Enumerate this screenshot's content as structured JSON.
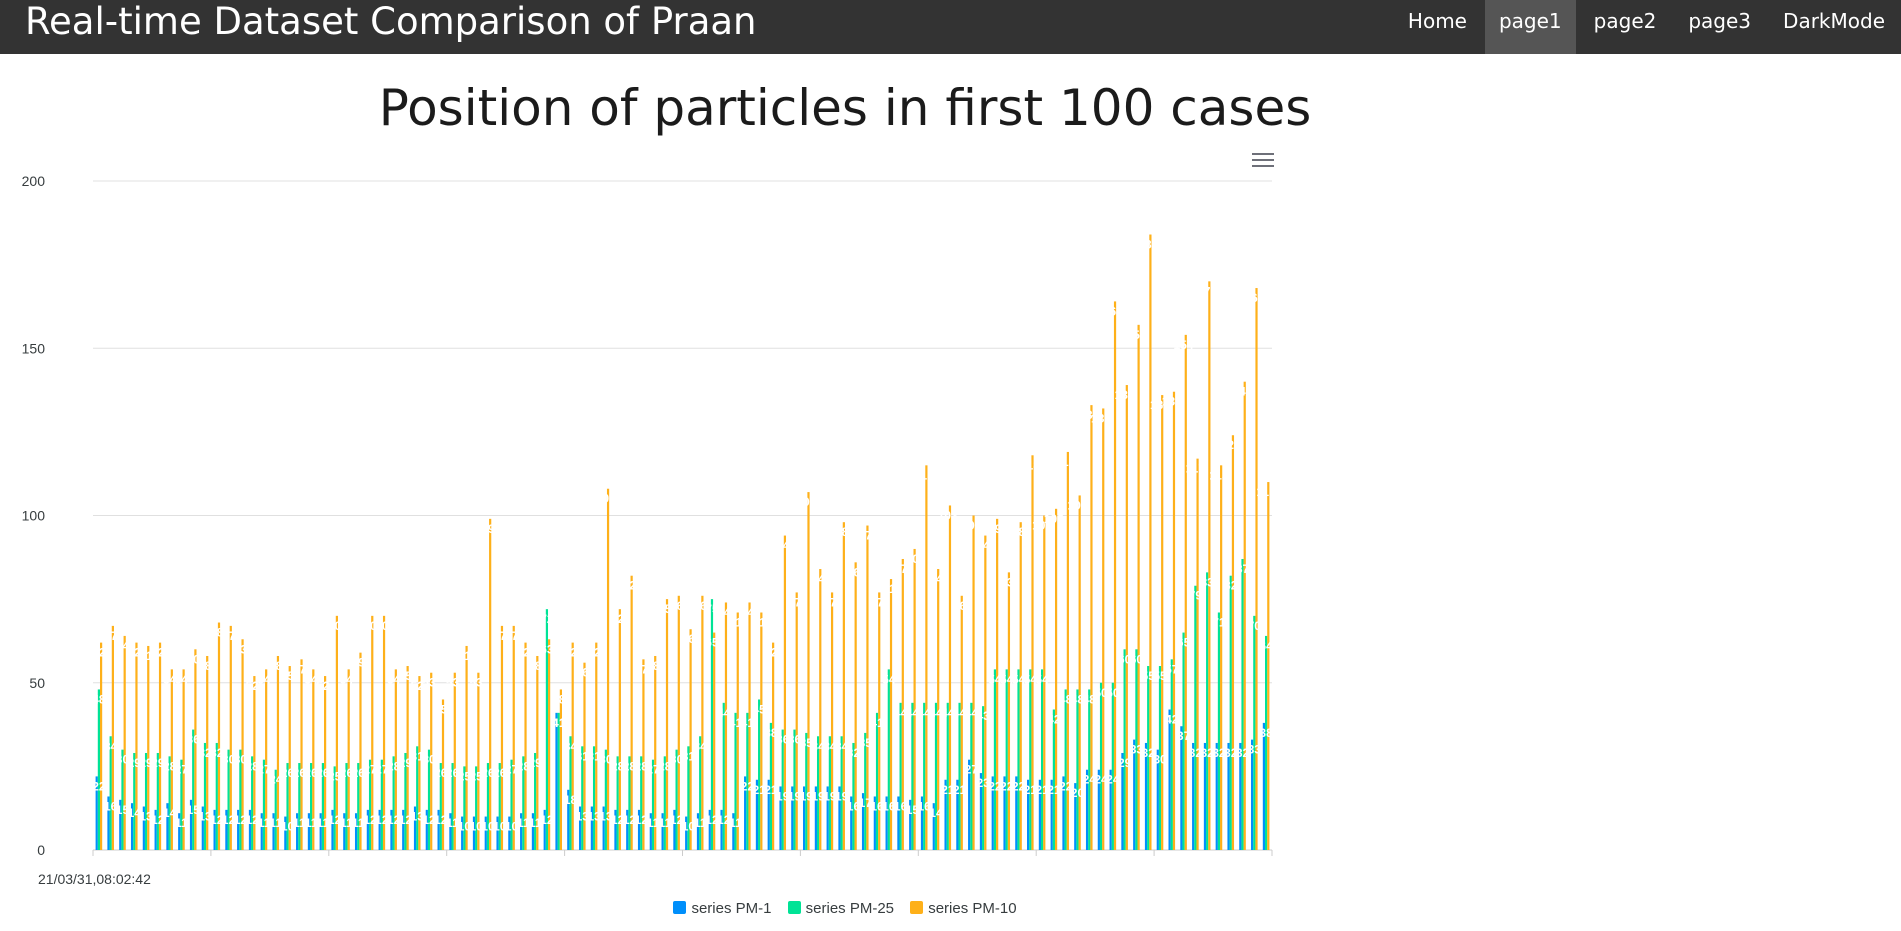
{
  "navbar": {
    "title": "Real-time Dataset Comparison of Praan",
    "items": [
      "Home",
      "page1",
      "page2",
      "page3",
      "DarkMode"
    ],
    "active_index": 1
  },
  "colors": {
    "navbar_bg": "#333333",
    "active_item_bg": "#555555",
    "grid": "#e0e0e0",
    "axis_text": "#373d3f"
  },
  "icons": {
    "chart_menu": "hamburger-menu-icon"
  },
  "chart_data": {
    "type": "bar",
    "title": "Position of particles in first 100 cases",
    "xlabel": "",
    "ylabel": "",
    "ylim": [
      0,
      200
    ],
    "yticks": [
      "0",
      "50",
      "100",
      "150",
      "200"
    ],
    "x_first_label": "21/03/31,08:02:42",
    "grid": true,
    "legend_position": "bottom-center",
    "data_labels": true,
    "series": [
      {
        "name": "series PM-1",
        "color": "#008ffb",
        "values": [
          22,
          16,
          15,
          14,
          13,
          12,
          14,
          11,
          15,
          13,
          12,
          12,
          12,
          12,
          11,
          11,
          10,
          11,
          11,
          11,
          12,
          11,
          11,
          12,
          12,
          12,
          12,
          13,
          12,
          12,
          11,
          10,
          10,
          10,
          10,
          10,
          11,
          11,
          12,
          41,
          18,
          13,
          13,
          13,
          12,
          12,
          12,
          11,
          11,
          12,
          10,
          11,
          12,
          12,
          11,
          22,
          21,
          21,
          19,
          19,
          19,
          19,
          19,
          19,
          16,
          17,
          16,
          16,
          16,
          15,
          16,
          14,
          21,
          21,
          27,
          23,
          22,
          22,
          22,
          21,
          21,
          21,
          22,
          20,
          24,
          24,
          24,
          29,
          33,
          32,
          30,
          42,
          37,
          32,
          32,
          32,
          32,
          32,
          33,
          38
        ]
      },
      {
        "name": "series PM-25",
        "color": "#00e396",
        "values": [
          48,
          34,
          30,
          29,
          29,
          29,
          28,
          27,
          36,
          32,
          32,
          30,
          30,
          28,
          27,
          24,
          26,
          26,
          26,
          26,
          25,
          26,
          26,
          27,
          27,
          28,
          29,
          31,
          30,
          26,
          26,
          25,
          25,
          26,
          26,
          27,
          28,
          29,
          72,
          41,
          34,
          31,
          31,
          30,
          28,
          28,
          28,
          27,
          28,
          30,
          31,
          34,
          75,
          44,
          41,
          41,
          45,
          38,
          36,
          36,
          35,
          34,
          34,
          34,
          32,
          35,
          41,
          54,
          44,
          44,
          44,
          44,
          44,
          44,
          44,
          43,
          54,
          54,
          54,
          54,
          54,
          42,
          48,
          48,
          48,
          50,
          50,
          60,
          60,
          55,
          55,
          57,
          65,
          79,
          83,
          71,
          82,
          87,
          70,
          64
        ]
      },
      {
        "name": "series PM-10",
        "color": "#feb019",
        "values": [
          62,
          67,
          64,
          62,
          61,
          62,
          54,
          54,
          60,
          58,
          68,
          67,
          63,
          52,
          54,
          58,
          55,
          57,
          54,
          52,
          70,
          54,
          59,
          70,
          70,
          54,
          55,
          52,
          53,
          45,
          53,
          61,
          53,
          99,
          67,
          67,
          62,
          58,
          63,
          48,
          62,
          56,
          62,
          108,
          72,
          82,
          57,
          58,
          75,
          76,
          66,
          76,
          65,
          74,
          71,
          74,
          71,
          62,
          94,
          77,
          107,
          84,
          77,
          98,
          86,
          97,
          77,
          81,
          87,
          90,
          115,
          84,
          103,
          76,
          100,
          94,
          99,
          83,
          98,
          118,
          100,
          102,
          119,
          106,
          133,
          132,
          164,
          139,
          157,
          184,
          136,
          137,
          154,
          117,
          170,
          115,
          124,
          140,
          168,
          110
        ]
      }
    ]
  }
}
